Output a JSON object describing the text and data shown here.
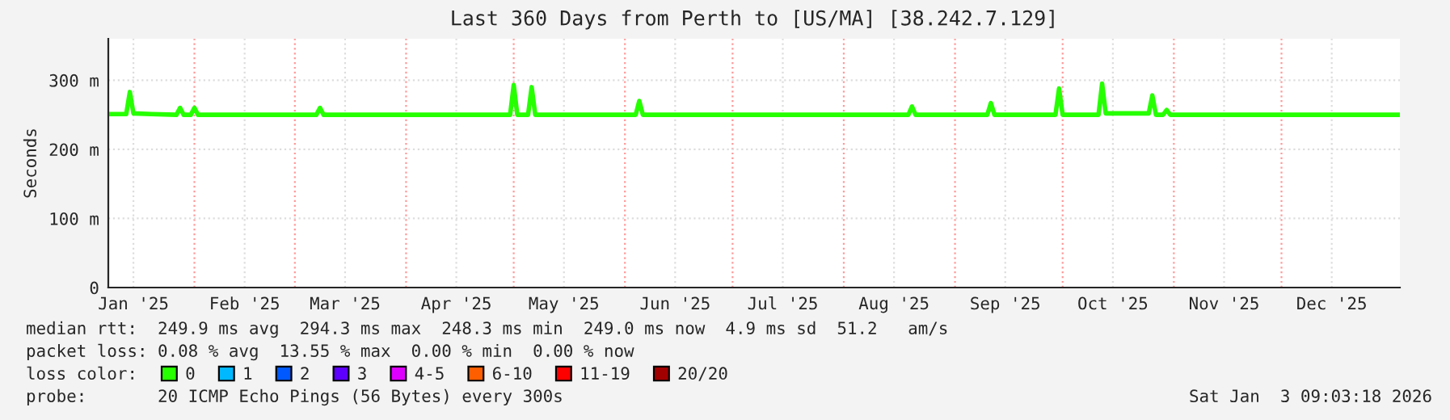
{
  "chart_data": {
    "type": "line",
    "title": "Last 360 Days from Perth to [US/MA] [38.242.7.129]",
    "ylabel": "Seconds",
    "xlim": [
      "2025-01-08",
      "2026-01-03"
    ],
    "xticks": [
      {
        "value": "2025-01-15",
        "label": "Jan '25"
      },
      {
        "value": "2025-02-15",
        "label": "Feb '25"
      },
      {
        "value": "2025-03-15",
        "label": "Mar '25"
      },
      {
        "value": "2025-04-15",
        "label": "Apr '25"
      },
      {
        "value": "2025-05-15",
        "label": "May '25"
      },
      {
        "value": "2025-06-15",
        "label": "Jun '25"
      },
      {
        "value": "2025-07-15",
        "label": "Jul '25"
      },
      {
        "value": "2025-08-15",
        "label": "Aug '25"
      },
      {
        "value": "2025-09-15",
        "label": "Sep '25"
      },
      {
        "value": "2025-10-15",
        "label": "Oct '25"
      },
      {
        "value": "2025-11-15",
        "label": "Nov '25"
      },
      {
        "value": "2025-12-15",
        "label": "Dec '25"
      }
    ],
    "ylim": [
      0,
      360
    ],
    "yticks": [
      0,
      {
        "value": 100,
        "label": "100 m"
      },
      {
        "value": 200,
        "label": "200 m"
      },
      {
        "value": 300,
        "label": "300 m"
      }
    ],
    "grid": true,
    "line_style": "solid",
    "marker": "none",
    "legend": "bottom left",
    "legend_title": "loss color:",
    "ref_lines": [
      {
        "axis": "x",
        "value": "2025-02-01",
        "color": "#ff9999",
        "line_style": "dotted"
      },
      {
        "axis": "x",
        "value": "2025-03-01",
        "color": "#ff9999",
        "line_style": "dotted"
      },
      {
        "axis": "x",
        "value": "2025-04-01",
        "color": "#ff9999",
        "line_style": "dotted"
      },
      {
        "axis": "x",
        "value": "2025-05-01",
        "color": "#ff9999",
        "line_style": "dotted"
      },
      {
        "axis": "x",
        "value": "2025-06-01",
        "color": "#ff9999",
        "line_style": "dotted"
      },
      {
        "axis": "x",
        "value": "2025-07-01",
        "color": "#ff9999",
        "line_style": "dotted"
      },
      {
        "axis": "x",
        "value": "2025-08-01",
        "color": "#ff9999",
        "line_style": "dotted"
      },
      {
        "axis": "x",
        "value": "2025-09-01",
        "color": "#ff9999",
        "line_style": "dotted"
      },
      {
        "axis": "x",
        "value": "2025-10-01",
        "color": "#ff9999",
        "line_style": "dotted"
      },
      {
        "axis": "x",
        "value": "2025-11-01",
        "color": "#ff9999",
        "line_style": "dotted"
      },
      {
        "axis": "x",
        "value": "2025-12-01",
        "color": "#ff9999",
        "line_style": "dotted"
      }
    ],
    "x": [
      "2025-01-08",
      "2025-01-13",
      "2025-01-14",
      "2025-01-15",
      "2025-01-20",
      "2025-01-27",
      "2025-01-28",
      "2025-01-29",
      "2025-01-31",
      "2025-02-01",
      "2025-02-02",
      "2025-02-15",
      "2025-03-07",
      "2025-03-08",
      "2025-03-09",
      "2025-04-15",
      "2025-04-30",
      "2025-05-01",
      "2025-05-02",
      "2025-05-05",
      "2025-05-06",
      "2025-05-07",
      "2025-06-04",
      "2025-06-05",
      "2025-06-06",
      "2025-07-15",
      "2025-08-19",
      "2025-08-20",
      "2025-08-21",
      "2025-09-10",
      "2025-09-11",
      "2025-09-12",
      "2025-09-29",
      "2025-09-30",
      "2025-10-01",
      "2025-10-11",
      "2025-10-12",
      "2025-10-13",
      "2025-10-25",
      "2025-10-26",
      "2025-10-27",
      "2025-10-29",
      "2025-10-30",
      "2025-10-31",
      "2025-11-30",
      "2026-01-03"
    ],
    "series": [
      {
        "name": "0",
        "color": "#26ff00",
        "values": [
          251,
          251,
          283,
          252,
          251,
          250,
          260,
          250,
          250,
          260,
          250,
          250,
          250,
          260,
          250,
          250,
          250,
          293,
          250,
          250,
          290,
          250,
          250,
          270,
          250,
          250,
          250,
          262,
          250,
          250,
          267,
          250,
          250,
          288,
          250,
          250,
          295,
          252,
          252,
          278,
          250,
          250,
          257,
          250,
          250,
          250
        ]
      },
      {
        "name": "1",
        "color": "#00b8ff",
        "values": [
          null,
          null,
          null,
          null,
          null,
          null,
          null,
          null,
          null,
          null,
          null,
          null,
          null,
          null,
          null,
          null,
          null,
          null,
          null,
          null,
          null,
          null,
          null,
          null,
          null,
          null,
          null,
          null,
          null,
          null,
          null,
          null,
          null,
          null,
          null,
          null,
          null,
          null,
          null,
          null,
          null,
          null,
          null,
          null,
          null,
          null
        ]
      },
      {
        "name": "2",
        "color": "#0059ff",
        "values": [
          null,
          null,
          null,
          null,
          null,
          null,
          null,
          null,
          null,
          null,
          null,
          null,
          null,
          null,
          null,
          null,
          null,
          null,
          null,
          null,
          null,
          null,
          null,
          null,
          null,
          null,
          null,
          null,
          null,
          null,
          null,
          null,
          null,
          null,
          null,
          null,
          null,
          null,
          null,
          null,
          null,
          null,
          null,
          null,
          null,
          null
        ]
      },
      {
        "name": "3",
        "color": "#5e00ff",
        "values": [
          null,
          null,
          null,
          null,
          null,
          null,
          null,
          null,
          null,
          null,
          null,
          null,
          null,
          null,
          null,
          null,
          null,
          null,
          null,
          null,
          null,
          null,
          null,
          null,
          null,
          null,
          null,
          null,
          null,
          null,
          null,
          null,
          null,
          null,
          null,
          null,
          null,
          null,
          null,
          null,
          null,
          null,
          null,
          null,
          null,
          null
        ]
      },
      {
        "name": "4-5",
        "color": "#dd00ff",
        "values": [
          null,
          null,
          null,
          null,
          null,
          null,
          null,
          null,
          null,
          null,
          null,
          null,
          null,
          null,
          null,
          null,
          null,
          null,
          null,
          null,
          null,
          null,
          null,
          null,
          null,
          null,
          null,
          null,
          null,
          null,
          null,
          null,
          null,
          null,
          null,
          null,
          null,
          null,
          null,
          null,
          null,
          null,
          null,
          null,
          null,
          null
        ]
      },
      {
        "name": "6-10",
        "color": "#ff5e00",
        "values": [
          null,
          null,
          null,
          null,
          null,
          null,
          null,
          null,
          null,
          null,
          null,
          null,
          null,
          null,
          null,
          null,
          null,
          null,
          null,
          null,
          null,
          null,
          null,
          null,
          null,
          null,
          null,
          null,
          null,
          null,
          null,
          null,
          null,
          null,
          null,
          null,
          null,
          null,
          null,
          null,
          null,
          null,
          null,
          null,
          null,
          null
        ]
      },
      {
        "name": "11-19",
        "color": "#ff0000",
        "values": [
          null,
          null,
          null,
          null,
          null,
          null,
          null,
          null,
          null,
          null,
          null,
          null,
          null,
          null,
          null,
          null,
          null,
          null,
          null,
          null,
          null,
          null,
          null,
          null,
          null,
          null,
          null,
          null,
          null,
          null,
          null,
          null,
          null,
          null,
          null,
          null,
          null,
          null,
          null,
          null,
          null,
          null,
          null,
          null,
          null,
          null
        ]
      },
      {
        "name": "20/20",
        "color": "#a10000",
        "values": [
          null,
          null,
          null,
          null,
          null,
          null,
          null,
          null,
          null,
          null,
          null,
          null,
          null,
          null,
          null,
          null,
          null,
          null,
          null,
          null,
          null,
          null,
          null,
          null,
          null,
          null,
          null,
          null,
          null,
          null,
          null,
          null,
          null,
          null,
          null,
          null,
          null,
          null,
          null,
          null,
          null,
          null,
          null,
          null,
          null,
          null
        ]
      }
    ],
    "annotations": [
      "median rtt:  249.9 ms avg  294.3 ms max  248.3 ms min  249.0 ms now  4.9 ms sd  51.2   am/s",
      "packet loss: 0.08 % avg  13.55 % max  0.00 % min  0.00 % now",
      "probe:       20 ICMP Echo Pings (56 Bytes) every 300s",
      "Sat Jan  3 09:03:18 2026"
    ]
  }
}
